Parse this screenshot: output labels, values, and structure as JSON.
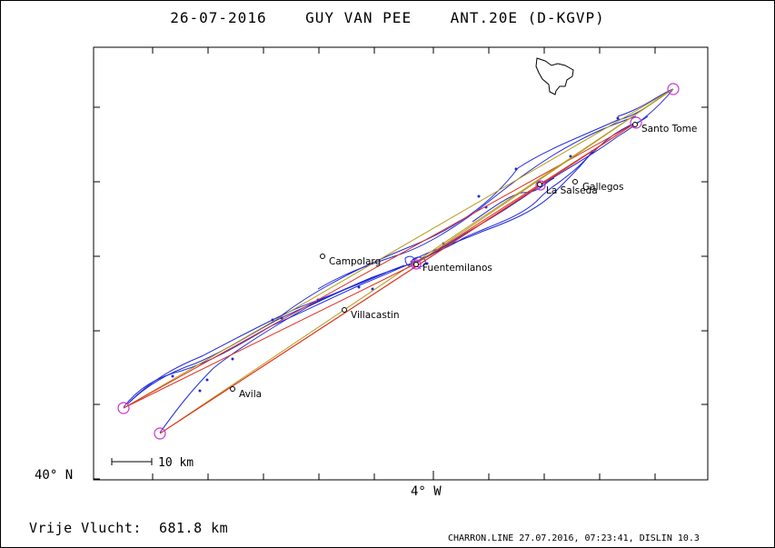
{
  "title": "26-07-2016    GUY VAN PEE    ANT.20E (D-KGVP)",
  "axis": {
    "lat_label": "40° N",
    "lon_label": "4° W"
  },
  "scale_bar": {
    "label": "10 km"
  },
  "distance_text": "Vrije Vlucht:  681.8 km",
  "footer": "CHARRON.LINE 27.07.2016, 07:23:41, DISLIN 10.3",
  "places": [
    {
      "name": "Santo Tome"
    },
    {
      "name": "Gallegos"
    },
    {
      "name": "La Salseda"
    },
    {
      "name": "Campolarg"
    },
    {
      "name": "Fuentemilanos"
    },
    {
      "name": "Villacastin"
    },
    {
      "name": "Avila"
    }
  ],
  "colors": {
    "track": "#1f2ad8",
    "course_red": "#e0301e",
    "course_olive": "#b59a18",
    "turnpoint": "#cc33cc"
  }
}
